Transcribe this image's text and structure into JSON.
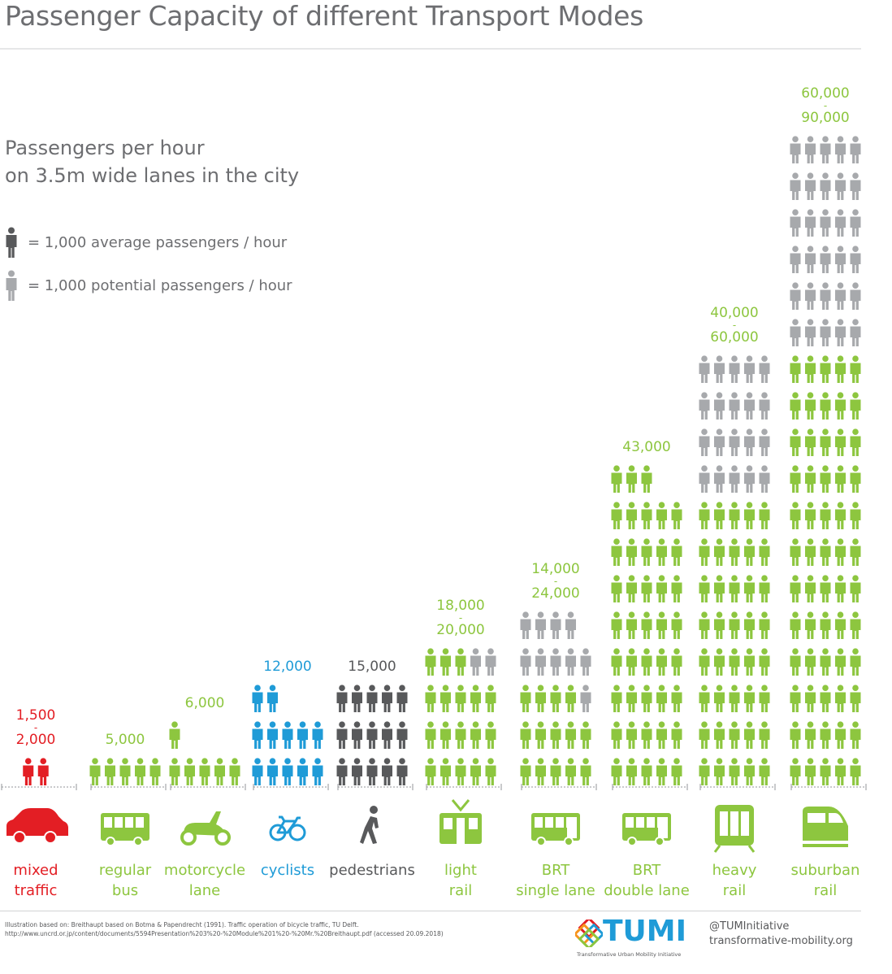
{
  "title": "Passenger Capacity of different Transport Modes",
  "subtitle_line1": "Passengers per hour",
  "subtitle_line2": "on 3.5m wide lanes in the city",
  "legend": {
    "average": "= 1,000 average passengers / hour",
    "potential": "= 1,000 potential passengers / hour"
  },
  "colors": {
    "average_dark": "#58595b",
    "potential_grey": "#a7a9ac",
    "green": "#8dc63f",
    "green_label": "#8dc63f",
    "red": "#e31e24",
    "blue": "#1f9bd7",
    "text": "#6d6e71"
  },
  "chart_data": {
    "type": "pictogram",
    "unit": "1,000 passengers / hour per figure",
    "modes": [
      {
        "label1": "mixed",
        "label2": "traffic",
        "value_line1": "1,500",
        "value_line2": "2,000",
        "average": 1.5,
        "potential_max": 2,
        "color": "#e31e24",
        "icon": "car-icon"
      },
      {
        "label1": "regular",
        "label2": "bus",
        "value_line1": "5,000",
        "value_line2": "",
        "average": 5,
        "potential_max": 5,
        "color": "#8dc63f",
        "icon": "bus-icon"
      },
      {
        "label1": "motorcycle",
        "label2": "lane",
        "value_line1": "6,000",
        "value_line2": "",
        "average": 6,
        "potential_max": 6,
        "color": "#8dc63f",
        "icon": "motorcycle-icon"
      },
      {
        "label1": "cyclists",
        "label2": "",
        "value_line1": "12,000",
        "value_line2": "",
        "average": 12,
        "potential_max": 12,
        "color": "#1f9bd7",
        "icon": "bicycle-icon"
      },
      {
        "label1": "pedestrians",
        "label2": "",
        "value_line1": "15,000",
        "value_line2": "",
        "average": 15,
        "potential_max": 15,
        "color": "#58595b",
        "icon": "pedestrian-icon"
      },
      {
        "label1": "light",
        "label2": "rail",
        "value_line1": "18,000",
        "value_line2": "20,000",
        "average": 18,
        "potential_max": 20,
        "color": "#8dc63f",
        "icon": "tram-icon"
      },
      {
        "label1": "BRT",
        "label2": "single lane",
        "value_line1": "14,000",
        "value_line2": "24,000",
        "average": 14,
        "potential_max": 24,
        "color": "#8dc63f",
        "icon": "brt-single-icon"
      },
      {
        "label1": "BRT",
        "label2": "double lane",
        "value_line1": "43,000",
        "value_line2": "",
        "average": 43,
        "potential_max": 43,
        "color": "#8dc63f",
        "icon": "brt-double-icon"
      },
      {
        "label1": "heavy",
        "label2": "rail",
        "value_line1": "40,000",
        "value_line2": "60,000",
        "average": 40,
        "potential_max": 60,
        "color": "#8dc63f",
        "icon": "metro-icon"
      },
      {
        "label1": "suburban",
        "label2": "rail",
        "value_line1": "60,000",
        "value_line2": "90,000",
        "average": 60,
        "potential_max": 90,
        "color": "#8dc63f",
        "icon": "train-icon"
      }
    ]
  },
  "footer": {
    "source": "Illustration based on: Breithaupt based on Botma & Papendrecht (1991). Traffic operation of bicycle traffic, TU Delft. http://www.uncrd.or.jp/content/documents/5594Presentation%203%20-%20Module%201%20-%20Mr.%20Breithaupt.pdf (accessed 20.09.2018)",
    "logo_word": "TUMI",
    "logo_tag": "Transformative Urban Mobility Initiative",
    "handle": "@TUMInitiative",
    "website": "transformative-mobility.org"
  }
}
